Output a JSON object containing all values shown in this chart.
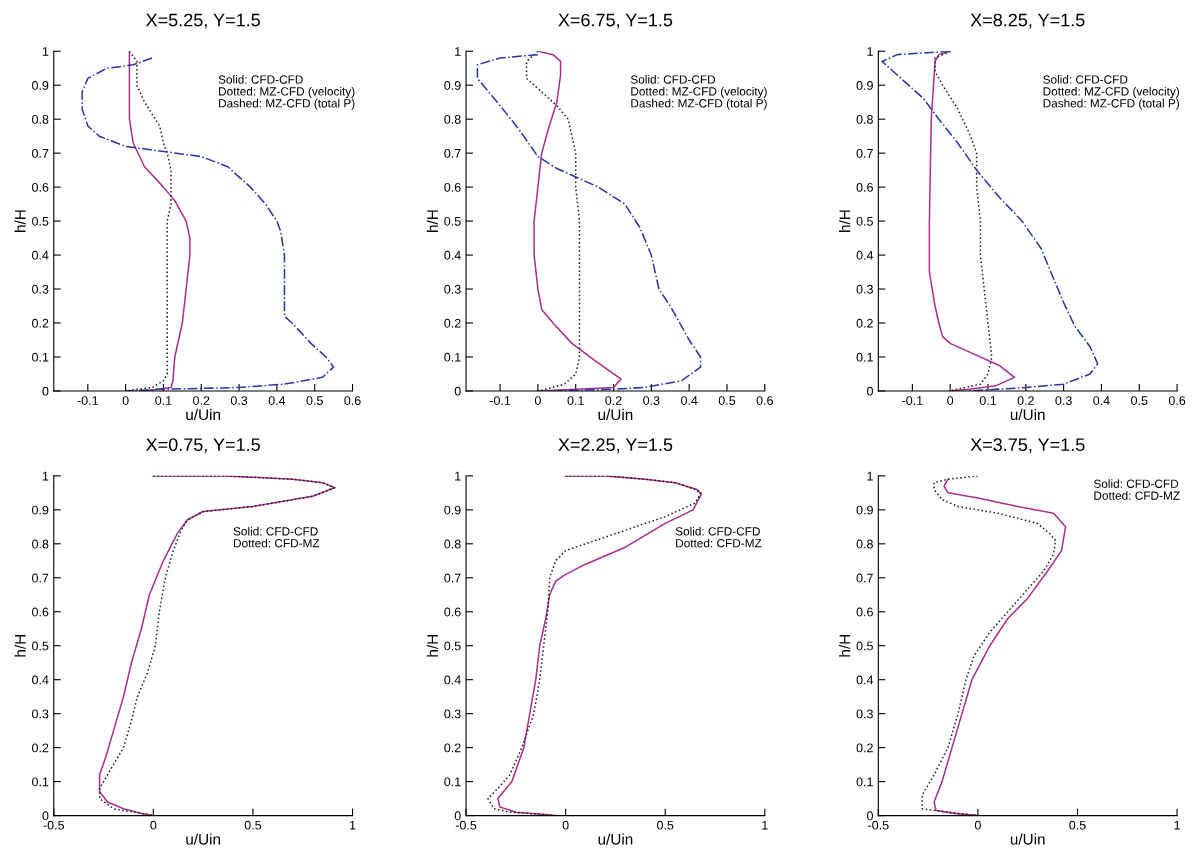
{
  "chart_data": [
    {
      "type": "line",
      "title": "X=5.25, Y=1.5",
      "xlabel": "u/Uin",
      "ylabel": "h/H",
      "xlim": [
        -0.19,
        0.6
      ],
      "xticks": [
        -0.1,
        0,
        0.1,
        0.2,
        0.3,
        0.4,
        0.5,
        0.6
      ],
      "ylim": [
        0,
        1
      ],
      "yticks": [
        0,
        0.1,
        0.2,
        0.3,
        0.4,
        0.5,
        0.6,
        0.7,
        0.8,
        0.9,
        1
      ],
      "grid": false,
      "marker": "none",
      "annotations": [
        "Solid: CFD-CFD",
        "Dotted: MZ-CFD (velocity)",
        "Dashed: MZ-CFD (total P)"
      ],
      "series": [
        {
          "color": "#a8308f",
          "line_style": "solid",
          "x": [
            0.01,
            0.01,
            0.01,
            0.02,
            0.05,
            0.1,
            0.13,
            0.16,
            0.17,
            0.17,
            0.16,
            0.15,
            0.13,
            0.125,
            0.12,
            0.05
          ],
          "values": [
            1.0,
            0.97,
            0.8,
            0.73,
            0.66,
            0.6,
            0.56,
            0.5,
            0.45,
            0.4,
            0.3,
            0.2,
            0.1,
            0.03,
            0.01,
            0.0
          ]
        },
        {
          "color": "#202020",
          "line_style": "dotted",
          "x": [
            0.01,
            0.03,
            0.03,
            0.05,
            0.09,
            0.1,
            0.11,
            0.12,
            0.12,
            0.12,
            0.11,
            0.11,
            0.11,
            0.11,
            0.1,
            0.07,
            0.0
          ],
          "values": [
            1.0,
            0.97,
            0.9,
            0.85,
            0.78,
            0.73,
            0.7,
            0.65,
            0.6,
            0.55,
            0.5,
            0.3,
            0.1,
            0.05,
            0.03,
            0.01,
            0.0
          ]
        },
        {
          "color": "#2838a0",
          "line_style": "dashed",
          "x": [
            0.07,
            0.02,
            -0.05,
            -0.1,
            -0.115,
            -0.115,
            -0.1,
            -0.07,
            0.0,
            0.1,
            0.2,
            0.27,
            0.33,
            0.37,
            0.4,
            0.41,
            0.42,
            0.42,
            0.42,
            0.44,
            0.49,
            0.53,
            0.55,
            0.52,
            0.42,
            0.3,
            0.1,
            0.0
          ],
          "values": [
            0.98,
            0.96,
            0.95,
            0.92,
            0.88,
            0.83,
            0.78,
            0.75,
            0.72,
            0.705,
            0.69,
            0.66,
            0.6,
            0.55,
            0.5,
            0.47,
            0.4,
            0.3,
            0.22,
            0.2,
            0.14,
            0.1,
            0.07,
            0.04,
            0.02,
            0.01,
            0.005,
            0.0
          ]
        }
      ]
    },
    {
      "type": "line",
      "title": "X=6.75, Y=1.5",
      "xlabel": "u/Uin",
      "ylabel": "h/H",
      "xlim": [
        -0.19,
        0.6
      ],
      "xticks": [
        -0.1,
        0,
        0.1,
        0.2,
        0.3,
        0.4,
        0.5,
        0.6
      ],
      "ylim": [
        0,
        1
      ],
      "yticks": [
        0,
        0.1,
        0.2,
        0.3,
        0.4,
        0.5,
        0.6,
        0.7,
        0.8,
        0.9,
        1
      ],
      "grid": false,
      "marker": "none",
      "annotations": [
        "Solid: CFD-CFD",
        "Dotted: MZ-CFD (velocity)",
        "Dashed: MZ-CFD (total P)"
      ],
      "series": [
        {
          "color": "#a8308f",
          "line_style": "solid",
          "x": [
            0.0,
            0.04,
            0.06,
            0.06,
            0.05,
            0.03,
            0.01,
            0.0,
            -0.01,
            -0.01,
            0.0,
            0.01,
            0.04,
            0.09,
            0.15,
            0.22,
            0.2,
            0.1,
            0.0
          ],
          "values": [
            1.0,
            0.99,
            0.97,
            0.93,
            0.85,
            0.78,
            0.7,
            0.6,
            0.5,
            0.4,
            0.3,
            0.24,
            0.2,
            0.14,
            0.09,
            0.035,
            0.01,
            0.005,
            0.0
          ]
        },
        {
          "color": "#202020",
          "line_style": "dotted",
          "x": [
            0.0,
            -0.03,
            -0.03,
            0.0,
            0.05,
            0.08,
            0.09,
            0.1,
            0.1,
            0.11,
            0.11,
            0.11,
            0.11,
            0.1,
            0.07,
            0.02,
            0.0
          ],
          "values": [
            1.0,
            0.97,
            0.92,
            0.89,
            0.84,
            0.8,
            0.75,
            0.7,
            0.6,
            0.5,
            0.3,
            0.2,
            0.1,
            0.05,
            0.02,
            0.005,
            0.0
          ]
        },
        {
          "color": "#2838a0",
          "line_style": "dashed",
          "x": [
            0.0,
            -0.1,
            -0.16,
            -0.16,
            -0.1,
            -0.05,
            0.0,
            0.05,
            0.1,
            0.16,
            0.23,
            0.27,
            0.3,
            0.32,
            0.35,
            0.4,
            0.43,
            0.43,
            0.38,
            0.28,
            0.2,
            0.05
          ],
          "values": [
            0.99,
            0.98,
            0.96,
            0.92,
            0.84,
            0.77,
            0.69,
            0.655,
            0.63,
            0.6,
            0.55,
            0.48,
            0.4,
            0.3,
            0.25,
            0.15,
            0.1,
            0.07,
            0.03,
            0.01,
            0.005,
            0.0
          ]
        }
      ]
    },
    {
      "type": "line",
      "title": "X=8.25, Y=1.5",
      "xlabel": "u/Uin",
      "ylabel": "h/H",
      "xlim": [
        -0.19,
        0.6
      ],
      "xticks": [
        -0.1,
        0,
        0.1,
        0.2,
        0.3,
        0.4,
        0.5,
        0.6
      ],
      "ylim": [
        0,
        1
      ],
      "yticks": [
        0,
        0.1,
        0.2,
        0.3,
        0.4,
        0.5,
        0.6,
        0.7,
        0.8,
        0.9,
        1
      ],
      "grid": false,
      "marker": "none",
      "annotations": [
        "Solid: CFD-CFD",
        "Dotted: MZ-CFD (velocity)",
        "Dashed: MZ-CFD (total P)"
      ],
      "series": [
        {
          "color": "#a8308f",
          "line_style": "solid",
          "x": [
            0.0,
            -0.03,
            -0.04,
            -0.05,
            -0.055,
            -0.055,
            -0.04,
            -0.03,
            -0.02,
            0.0,
            0.06,
            0.13,
            0.17,
            0.12,
            0.05,
            0.0
          ],
          "values": [
            1.0,
            0.99,
            0.97,
            0.8,
            0.5,
            0.35,
            0.25,
            0.2,
            0.16,
            0.14,
            0.11,
            0.075,
            0.04,
            0.015,
            0.005,
            0.0
          ]
        },
        {
          "color": "#202020",
          "line_style": "dotted",
          "x": [
            0.0,
            -0.04,
            -0.04,
            -0.02,
            0.02,
            0.05,
            0.07,
            0.07,
            0.08,
            0.08,
            0.09,
            0.1,
            0.11,
            0.1,
            0.08,
            0.02,
            0.0
          ],
          "values": [
            1.0,
            0.98,
            0.94,
            0.9,
            0.83,
            0.76,
            0.7,
            0.6,
            0.5,
            0.4,
            0.3,
            0.2,
            0.1,
            0.05,
            0.02,
            0.005,
            0.0
          ]
        },
        {
          "color": "#2838a0",
          "line_style": "dashed",
          "x": [
            0.0,
            -0.14,
            -0.18,
            -0.14,
            -0.07,
            -0.03,
            0.02,
            0.07,
            0.13,
            0.19,
            0.24,
            0.27,
            0.3,
            0.33,
            0.37,
            0.39,
            0.37,
            0.3,
            0.2,
            0.05
          ],
          "values": [
            1.0,
            0.99,
            0.97,
            0.93,
            0.86,
            0.8,
            0.73,
            0.65,
            0.57,
            0.5,
            0.42,
            0.34,
            0.26,
            0.19,
            0.13,
            0.08,
            0.05,
            0.02,
            0.01,
            0.0
          ]
        }
      ]
    },
    {
      "type": "line",
      "title": "X=0.75, Y=1.5",
      "xlabel": "u/Uin",
      "ylabel": "h/H",
      "xlim": [
        -0.5,
        1
      ],
      "xticks": [
        -0.5,
        0,
        0.5,
        1
      ],
      "ylim": [
        0,
        1
      ],
      "yticks": [
        0,
        0.1,
        0.2,
        0.3,
        0.4,
        0.5,
        0.6,
        0.7,
        0.8,
        0.9,
        1
      ],
      "grid": false,
      "marker": "none",
      "annotations": [
        "Solid: CFD-CFD",
        "Dotted: CFD-MZ"
      ],
      "series": [
        {
          "color": "#a8308f",
          "line_style": "solid",
          "x": [
            0.0,
            0.36,
            0.7,
            0.85,
            0.91,
            0.8,
            0.5,
            0.25,
            0.17,
            0.12,
            0.05,
            -0.02,
            -0.06,
            -0.11,
            -0.15,
            -0.2,
            -0.24,
            -0.27,
            -0.27,
            -0.23,
            -0.15,
            -0.05,
            0.0
          ],
          "values": [
            1.0,
            1.0,
            0.99,
            0.98,
            0.965,
            0.94,
            0.91,
            0.895,
            0.87,
            0.83,
            0.75,
            0.65,
            0.55,
            0.45,
            0.35,
            0.25,
            0.17,
            0.12,
            0.07,
            0.04,
            0.02,
            0.005,
            0.0
          ]
        },
        {
          "color": "#202020",
          "line_style": "dotted",
          "x": [
            0.0,
            0.36,
            0.7,
            0.85,
            0.91,
            0.8,
            0.5,
            0.25,
            0.17,
            0.14,
            0.1,
            0.06,
            0.03,
            0.01,
            -0.03,
            -0.08,
            -0.11,
            -0.15,
            -0.22,
            -0.27,
            -0.27,
            -0.2,
            -0.1,
            0.0
          ],
          "values": [
            1.0,
            1.0,
            0.99,
            0.98,
            0.965,
            0.94,
            0.91,
            0.895,
            0.87,
            0.84,
            0.78,
            0.7,
            0.6,
            0.5,
            0.42,
            0.35,
            0.28,
            0.2,
            0.13,
            0.08,
            0.05,
            0.02,
            0.01,
            0.0
          ]
        }
      ]
    },
    {
      "type": "line",
      "title": "X=2.25, Y=1.5",
      "xlabel": "u/Uin",
      "ylabel": "h/H",
      "xlim": [
        -0.5,
        1
      ],
      "xticks": [
        -0.5,
        0,
        0.5,
        1
      ],
      "ylim": [
        0,
        1
      ],
      "yticks": [
        0,
        0.1,
        0.2,
        0.3,
        0.4,
        0.5,
        0.6,
        0.7,
        0.8,
        0.9,
        1
      ],
      "grid": false,
      "marker": "none",
      "annotations": [
        "Solid: CFD-CFD",
        "Dotted: CFD-MZ"
      ],
      "series": [
        {
          "color": "#a8308f",
          "line_style": "solid",
          "x": [
            0.0,
            0.2,
            0.4,
            0.55,
            0.66,
            0.68,
            0.64,
            0.5,
            0.3,
            0.1,
            0.0,
            -0.05,
            -0.08,
            -0.1,
            -0.13,
            -0.15,
            -0.18,
            -0.21,
            -0.27,
            -0.34,
            -0.33,
            -0.25,
            -0.1,
            -0.05
          ],
          "values": [
            1.0,
            1.0,
            0.99,
            0.98,
            0.96,
            0.945,
            0.9,
            0.86,
            0.79,
            0.74,
            0.71,
            0.69,
            0.65,
            0.58,
            0.5,
            0.4,
            0.3,
            0.2,
            0.1,
            0.05,
            0.025,
            0.01,
            0.003,
            0.0
          ]
        },
        {
          "color": "#202020",
          "line_style": "dotted",
          "x": [
            0.0,
            0.2,
            0.4,
            0.55,
            0.65,
            0.68,
            0.65,
            0.5,
            0.3,
            0.1,
            0.0,
            -0.05,
            -0.08,
            -0.09,
            -0.11,
            -0.13,
            -0.16,
            -0.22,
            -0.28,
            -0.34,
            -0.39,
            -0.36,
            -0.28,
            -0.05
          ],
          "values": [
            1.0,
            1.0,
            0.99,
            0.98,
            0.96,
            0.95,
            0.92,
            0.88,
            0.84,
            0.8,
            0.78,
            0.75,
            0.7,
            0.6,
            0.5,
            0.4,
            0.3,
            0.2,
            0.12,
            0.08,
            0.05,
            0.02,
            0.01,
            0.0
          ]
        }
      ]
    },
    {
      "type": "line",
      "title": "X=3.75, Y=1.5",
      "xlabel": "u/Uin",
      "ylabel": "h/H",
      "xlim": [
        -0.5,
        1
      ],
      "xticks": [
        -0.5,
        0,
        0.5,
        1
      ],
      "ylim": [
        0,
        1
      ],
      "yticks": [
        0,
        0.1,
        0.2,
        0.3,
        0.4,
        0.5,
        0.6,
        0.7,
        0.8,
        0.9,
        1
      ],
      "grid": false,
      "marker": "none",
      "annotations": [
        "Solid: CFD-CFD",
        "Dotted: CFD-MZ"
      ],
      "series": [
        {
          "color": "#a8308f",
          "line_style": "solid",
          "x": [
            -0.15,
            -0.17,
            -0.15,
            0.0,
            0.2,
            0.38,
            0.44,
            0.42,
            0.35,
            0.25,
            0.15,
            0.06,
            -0.03,
            -0.08,
            -0.13,
            -0.18,
            -0.22,
            -0.21,
            -0.1,
            0.0
          ],
          "values": [
            0.99,
            0.97,
            0.95,
            0.935,
            0.91,
            0.89,
            0.85,
            0.78,
            0.72,
            0.64,
            0.58,
            0.5,
            0.4,
            0.3,
            0.2,
            0.1,
            0.04,
            0.015,
            0.005,
            0.0
          ]
        },
        {
          "color": "#202020",
          "line_style": "dotted",
          "x": [
            0.0,
            -0.15,
            -0.22,
            -0.22,
            -0.18,
            -0.1,
            0.1,
            0.3,
            0.36,
            0.39,
            0.38,
            0.33,
            0.24,
            0.15,
            0.06,
            -0.02,
            -0.06,
            -0.1,
            -0.15,
            -0.22,
            -0.28,
            -0.28,
            -0.15,
            0.0
          ],
          "values": [
            1.0,
            0.99,
            0.98,
            0.96,
            0.93,
            0.91,
            0.89,
            0.86,
            0.83,
            0.81,
            0.77,
            0.72,
            0.66,
            0.6,
            0.54,
            0.47,
            0.4,
            0.3,
            0.2,
            0.12,
            0.06,
            0.02,
            0.01,
            0.0
          ]
        }
      ]
    }
  ]
}
